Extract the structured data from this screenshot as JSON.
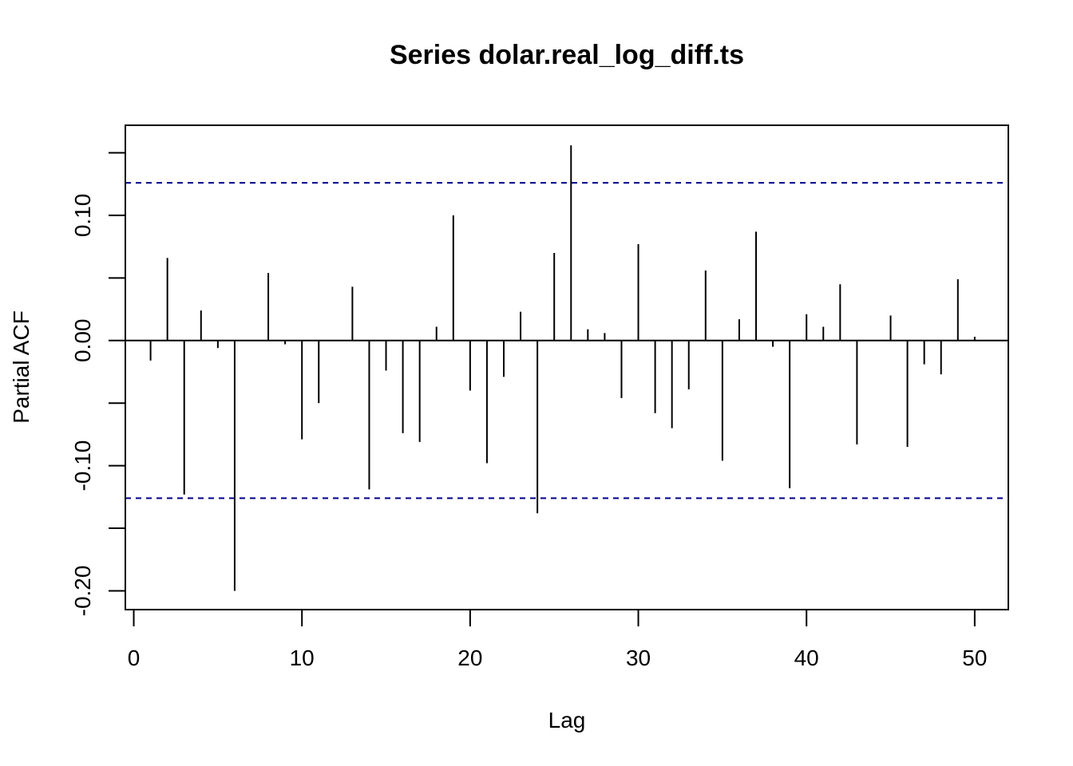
{
  "chart_data": {
    "type": "bar",
    "title": "Series  dolar.real_log_diff.ts",
    "xlabel": "Lag",
    "ylabel": "Partial ACF",
    "xlim": [
      -0.5,
      52
    ],
    "ylim": [
      -0.215,
      0.172
    ],
    "x_ticks": [
      0,
      10,
      20,
      30,
      40,
      50
    ],
    "x_tick_labels": [
      "0",
      "10",
      "20",
      "30",
      "40",
      "50"
    ],
    "y_ticks": [
      -0.2,
      -0.15,
      -0.1,
      -0.05,
      0.0,
      0.05,
      0.1,
      0.15
    ],
    "y_tick_labels": [
      "-0.20",
      "",
      "-0.10",
      "",
      "0.00",
      "",
      "0.10",
      ""
    ],
    "confidence_bound": 0.126,
    "confidence_color": "#00008b",
    "grid": false,
    "lags": [
      1,
      2,
      3,
      4,
      5,
      6,
      7,
      8,
      9,
      10,
      11,
      12,
      13,
      14,
      15,
      16,
      17,
      18,
      19,
      20,
      21,
      22,
      23,
      24,
      25,
      26,
      27,
      28,
      29,
      30,
      31,
      32,
      33,
      34,
      35,
      36,
      37,
      38,
      39,
      40,
      41,
      42,
      43,
      44,
      45,
      46,
      47,
      48,
      49,
      50
    ],
    "values": [
      -0.016,
      0.066,
      -0.123,
      0.024,
      -0.006,
      -0.2,
      0.0,
      0.054,
      -0.003,
      -0.079,
      -0.05,
      0.0,
      0.043,
      -0.119,
      -0.024,
      -0.074,
      -0.081,
      0.011,
      0.1,
      -0.04,
      -0.098,
      -0.029,
      0.023,
      -0.138,
      0.07,
      0.156,
      0.009,
      0.006,
      -0.046,
      0.077,
      -0.058,
      -0.07,
      -0.039,
      0.056,
      -0.096,
      0.017,
      0.087,
      -0.005,
      -0.118,
      0.021,
      0.011,
      0.045,
      -0.083,
      0.0,
      0.02,
      -0.085,
      -0.019,
      -0.027,
      0.049,
      0.003
    ]
  }
}
